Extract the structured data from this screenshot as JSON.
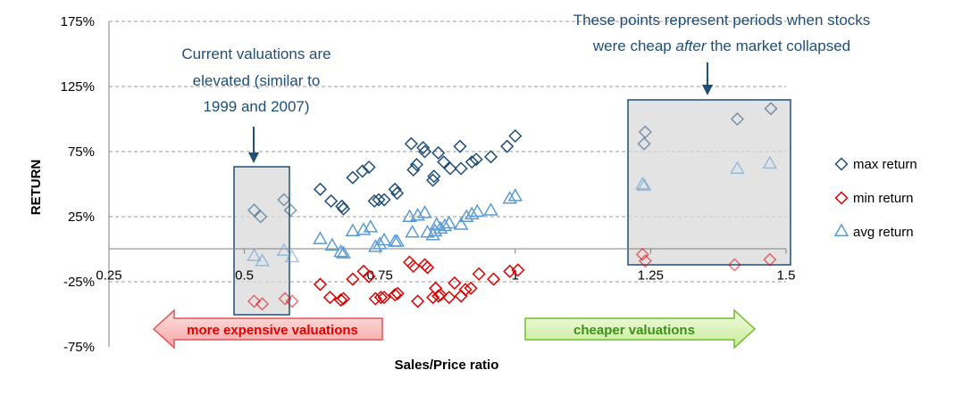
{
  "chart_data": {
    "type": "scatter",
    "title": "",
    "xlabel": "Sales/Price ratio",
    "ylabel": "RETURN",
    "xlim": [
      0.25,
      1.5
    ],
    "ylim": [
      -75,
      175
    ],
    "x_ticks": [
      "0.25",
      "0.5",
      "0.75",
      "1",
      "1.25",
      "1.5"
    ],
    "y_ticks": [
      "-75%",
      "-25%",
      "25%",
      "75%",
      "125%",
      "175%"
    ],
    "grid": "horizontal dashed",
    "legend_position": "right",
    "series": [
      {
        "name": "max return",
        "color": "#1f4e79",
        "marker": "diamond",
        "points": [
          [
            0.518,
            30
          ],
          [
            0.53,
            25
          ],
          [
            0.573,
            38
          ],
          [
            0.585,
            30
          ],
          [
            0.64,
            46
          ],
          [
            0.66,
            37
          ],
          [
            0.68,
            33
          ],
          [
            0.683,
            31
          ],
          [
            0.7,
            55
          ],
          [
            0.718,
            60
          ],
          [
            0.73,
            63
          ],
          [
            0.74,
            37
          ],
          [
            0.748,
            38
          ],
          [
            0.758,
            38
          ],
          [
            0.778,
            46
          ],
          [
            0.782,
            43
          ],
          [
            0.808,
            81
          ],
          [
            0.812,
            61
          ],
          [
            0.818,
            65
          ],
          [
            0.83,
            78
          ],
          [
            0.833,
            75
          ],
          [
            0.848,
            53
          ],
          [
            0.85,
            56
          ],
          [
            0.858,
            74
          ],
          [
            0.868,
            67
          ],
          [
            0.88,
            62
          ],
          [
            0.898,
            79
          ],
          [
            0.9,
            62
          ],
          [
            0.92,
            67
          ],
          [
            0.928,
            69
          ],
          [
            0.955,
            71
          ],
          [
            0.985,
            79
          ],
          [
            1.0,
            87
          ],
          [
            1.238,
            81
          ],
          [
            1.24,
            90
          ],
          [
            1.41,
            100
          ],
          [
            1.472,
            108
          ]
        ]
      },
      {
        "name": "min return",
        "color": "#e00000",
        "marker": "diamond",
        "points": [
          [
            0.518,
            -40
          ],
          [
            0.533,
            -42
          ],
          [
            0.575,
            -38
          ],
          [
            0.588,
            -40
          ],
          [
            0.64,
            -27
          ],
          [
            0.658,
            -37
          ],
          [
            0.678,
            -39
          ],
          [
            0.683,
            -38
          ],
          [
            0.7,
            -23
          ],
          [
            0.72,
            -17
          ],
          [
            0.73,
            -21
          ],
          [
            0.742,
            -38
          ],
          [
            0.752,
            -37
          ],
          [
            0.758,
            -37
          ],
          [
            0.778,
            -35
          ],
          [
            0.783,
            -34
          ],
          [
            0.805,
            -10
          ],
          [
            0.812,
            -13
          ],
          [
            0.82,
            -40
          ],
          [
            0.833,
            -12
          ],
          [
            0.838,
            -14
          ],
          [
            0.848,
            -37
          ],
          [
            0.853,
            -30
          ],
          [
            0.858,
            -36
          ],
          [
            0.862,
            -35
          ],
          [
            0.878,
            -37
          ],
          [
            0.888,
            -26
          ],
          [
            0.9,
            -36
          ],
          [
            0.908,
            -31
          ],
          [
            0.918,
            -30
          ],
          [
            0.933,
            -19
          ],
          [
            0.96,
            -23
          ],
          [
            0.99,
            -17
          ],
          [
            1.005,
            -16
          ],
          [
            1.235,
            -4
          ],
          [
            1.24,
            -9
          ],
          [
            1.405,
            -12
          ],
          [
            1.47,
            -8
          ]
        ]
      },
      {
        "name": "avg return",
        "color": "#5b9bd5",
        "marker": "triangle",
        "points": [
          [
            0.518,
            -5
          ],
          [
            0.533,
            -9
          ],
          [
            0.573,
            -1
          ],
          [
            0.588,
            -6
          ],
          [
            0.64,
            8
          ],
          [
            0.662,
            3
          ],
          [
            0.678,
            -2
          ],
          [
            0.683,
            -3
          ],
          [
            0.7,
            14
          ],
          [
            0.72,
            15
          ],
          [
            0.733,
            17
          ],
          [
            0.742,
            2
          ],
          [
            0.75,
            4
          ],
          [
            0.758,
            7
          ],
          [
            0.778,
            6
          ],
          [
            0.782,
            6
          ],
          [
            0.805,
            25
          ],
          [
            0.81,
            13
          ],
          [
            0.82,
            26
          ],
          [
            0.833,
            28
          ],
          [
            0.838,
            13
          ],
          [
            0.848,
            11
          ],
          [
            0.852,
            14
          ],
          [
            0.855,
            19
          ],
          [
            0.862,
            16
          ],
          [
            0.87,
            18
          ],
          [
            0.878,
            20
          ],
          [
            0.9,
            19
          ],
          [
            0.91,
            25
          ],
          [
            0.92,
            27
          ],
          [
            0.93,
            29
          ],
          [
            0.955,
            30
          ],
          [
            0.99,
            39
          ],
          [
            1.0,
            41
          ],
          [
            1.235,
            50
          ],
          [
            1.238,
            49
          ],
          [
            1.41,
            62
          ],
          [
            1.47,
            66
          ]
        ]
      }
    ],
    "annotations": [
      "Current valuations are elevated (similar to 1999 and 2007)",
      "These points represent periods when stocks were cheap after the market collapsed"
    ]
  },
  "annotations": {
    "left_line1": "Current valuations are",
    "left_line2": "elevated (similar to",
    "left_line3": "1999 and 2007)",
    "right_line1": "These points represent periods when stocks",
    "right_line2_a": "were cheap ",
    "right_line2_b": "after",
    "right_line2_c": " the market collapsed"
  },
  "arrows": {
    "left_label": "more expensive valuations",
    "left_color": "#e05555",
    "right_label": "cheaper valuations",
    "right_color": "#6fbf2b"
  },
  "colors": {
    "annotation_text": "#1f4e79",
    "shade_box_fill": "#d9d9d9",
    "shade_box_stroke": "#1f4e79"
  }
}
